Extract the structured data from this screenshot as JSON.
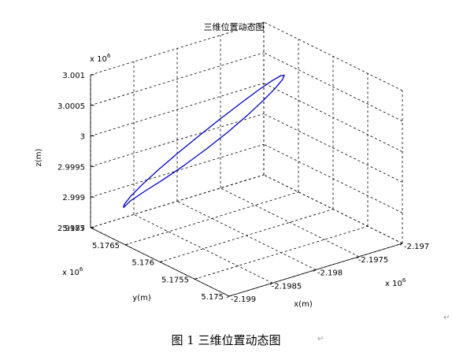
{
  "chart_data": {
    "type": "line3d",
    "title": "三维位置动态图",
    "xlabel": "x(m)",
    "ylabel": "y(m)",
    "zlabel": "z(m)",
    "x_ticks": [
      "-2.199",
      "-2.1985",
      "-2.198",
      "-2.1975",
      "-2.197"
    ],
    "y_ticks": [
      "5.175",
      "5.1755",
      "5.176",
      "5.1765",
      "5.177"
    ],
    "z_ticks": [
      "2.9985",
      "2.999",
      "2.9995",
      "3",
      "3.0005",
      "3.001"
    ],
    "x_multiplier": "x 10",
    "y_multiplier": "x 10",
    "z_multiplier": "x 10",
    "multiplier_exp": "6",
    "xlim": [
      -2199000,
      -2197000
    ],
    "ylim": [
      5175000,
      5177000
    ],
    "zlim": [
      2998500,
      3001000
    ],
    "grid": true,
    "series": [
      {
        "color": "#0000cc",
        "x": [
          -2198790,
          -2198776,
          -2198710,
          -2198593,
          -2198436,
          -2198250,
          -2198050,
          -2197853,
          -2197673,
          -2197525,
          -2197417,
          -2197355,
          -2197340,
          -2197372,
          -2197449,
          -2197566,
          -2197718,
          -2197898,
          -2198095,
          -2198294,
          -2198483,
          -2198642,
          -2198747,
          -2198790
        ],
        "y": [
          5176790,
          5176791,
          5176782,
          5176758,
          5176720,
          5176670,
          5176610,
          5176545,
          5176478,
          5176414,
          5176356,
          5176309,
          5176278,
          5176264,
          5176270,
          5176296,
          5176339,
          5176397,
          5176466,
          5176539,
          5176610,
          5176677,
          5176735,
          5176790
        ],
        "z": [
          2998855,
          2998905,
          2999013,
          2999171,
          2999367,
          2999589,
          2999823,
          3000054,
          3000267,
          3000448,
          3000584,
          3000664,
          3000682,
          3000634,
          3000524,
          3000360,
          3000156,
          2999925,
          2999689,
          2999467,
          2999272,
          2999113,
          2998981,
          2998855
        ]
      }
    ]
  },
  "caption": "图 1  三维位置动态图",
  "edit_marks": [
    "↵",
    "↵"
  ]
}
